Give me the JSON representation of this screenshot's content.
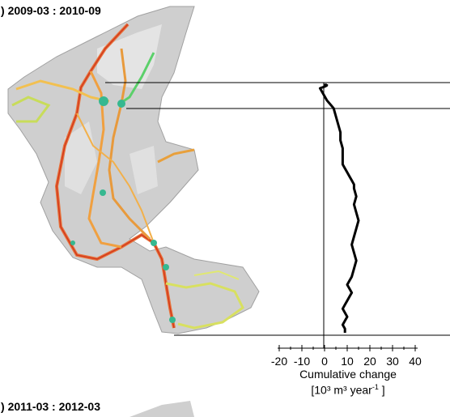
{
  "panels": [
    {
      "title": "2009-03 : 2010-09"
    },
    {
      "title": "2011-03 : 2012-03"
    }
  ],
  "chart_data": {
    "type": "line",
    "xlabel": "Cumulative change",
    "xunit_prefix": "[10³ m³ year",
    "xunit_exp": "-1",
    "xunit_suffix": " ]",
    "xlim": [
      -20,
      40
    ],
    "xticks": [
      -20,
      -10,
      0,
      10,
      20,
      30,
      40
    ],
    "series": [
      {
        "values_y_top_to_bottom": [
          0,
          0.5,
          1.0,
          1.5,
          3,
          4,
          5,
          10,
          20,
          30,
          40,
          50,
          60,
          70,
          80,
          90,
          100,
          105,
          110,
          115,
          120,
          125,
          130,
          140,
          150,
          160,
          170,
          180,
          190,
          200,
          210,
          220,
          230,
          240,
          245,
          250,
          255,
          260,
          265,
          270,
          275,
          280,
          285,
          290,
          295,
          300,
          305,
          310
        ],
        "x": [
          1,
          1,
          0,
          1,
          0,
          -1,
          -2,
          -1,
          1,
          4,
          5,
          6,
          7,
          7,
          8,
          8,
          8,
          9,
          10,
          11,
          12,
          13,
          13,
          14,
          13,
          14,
          15,
          14,
          13,
          12,
          13,
          14,
          13,
          12,
          11,
          10,
          11,
          12,
          11,
          10,
          9,
          8,
          9,
          10,
          9,
          8,
          9,
          9
        ]
      }
    ]
  }
}
